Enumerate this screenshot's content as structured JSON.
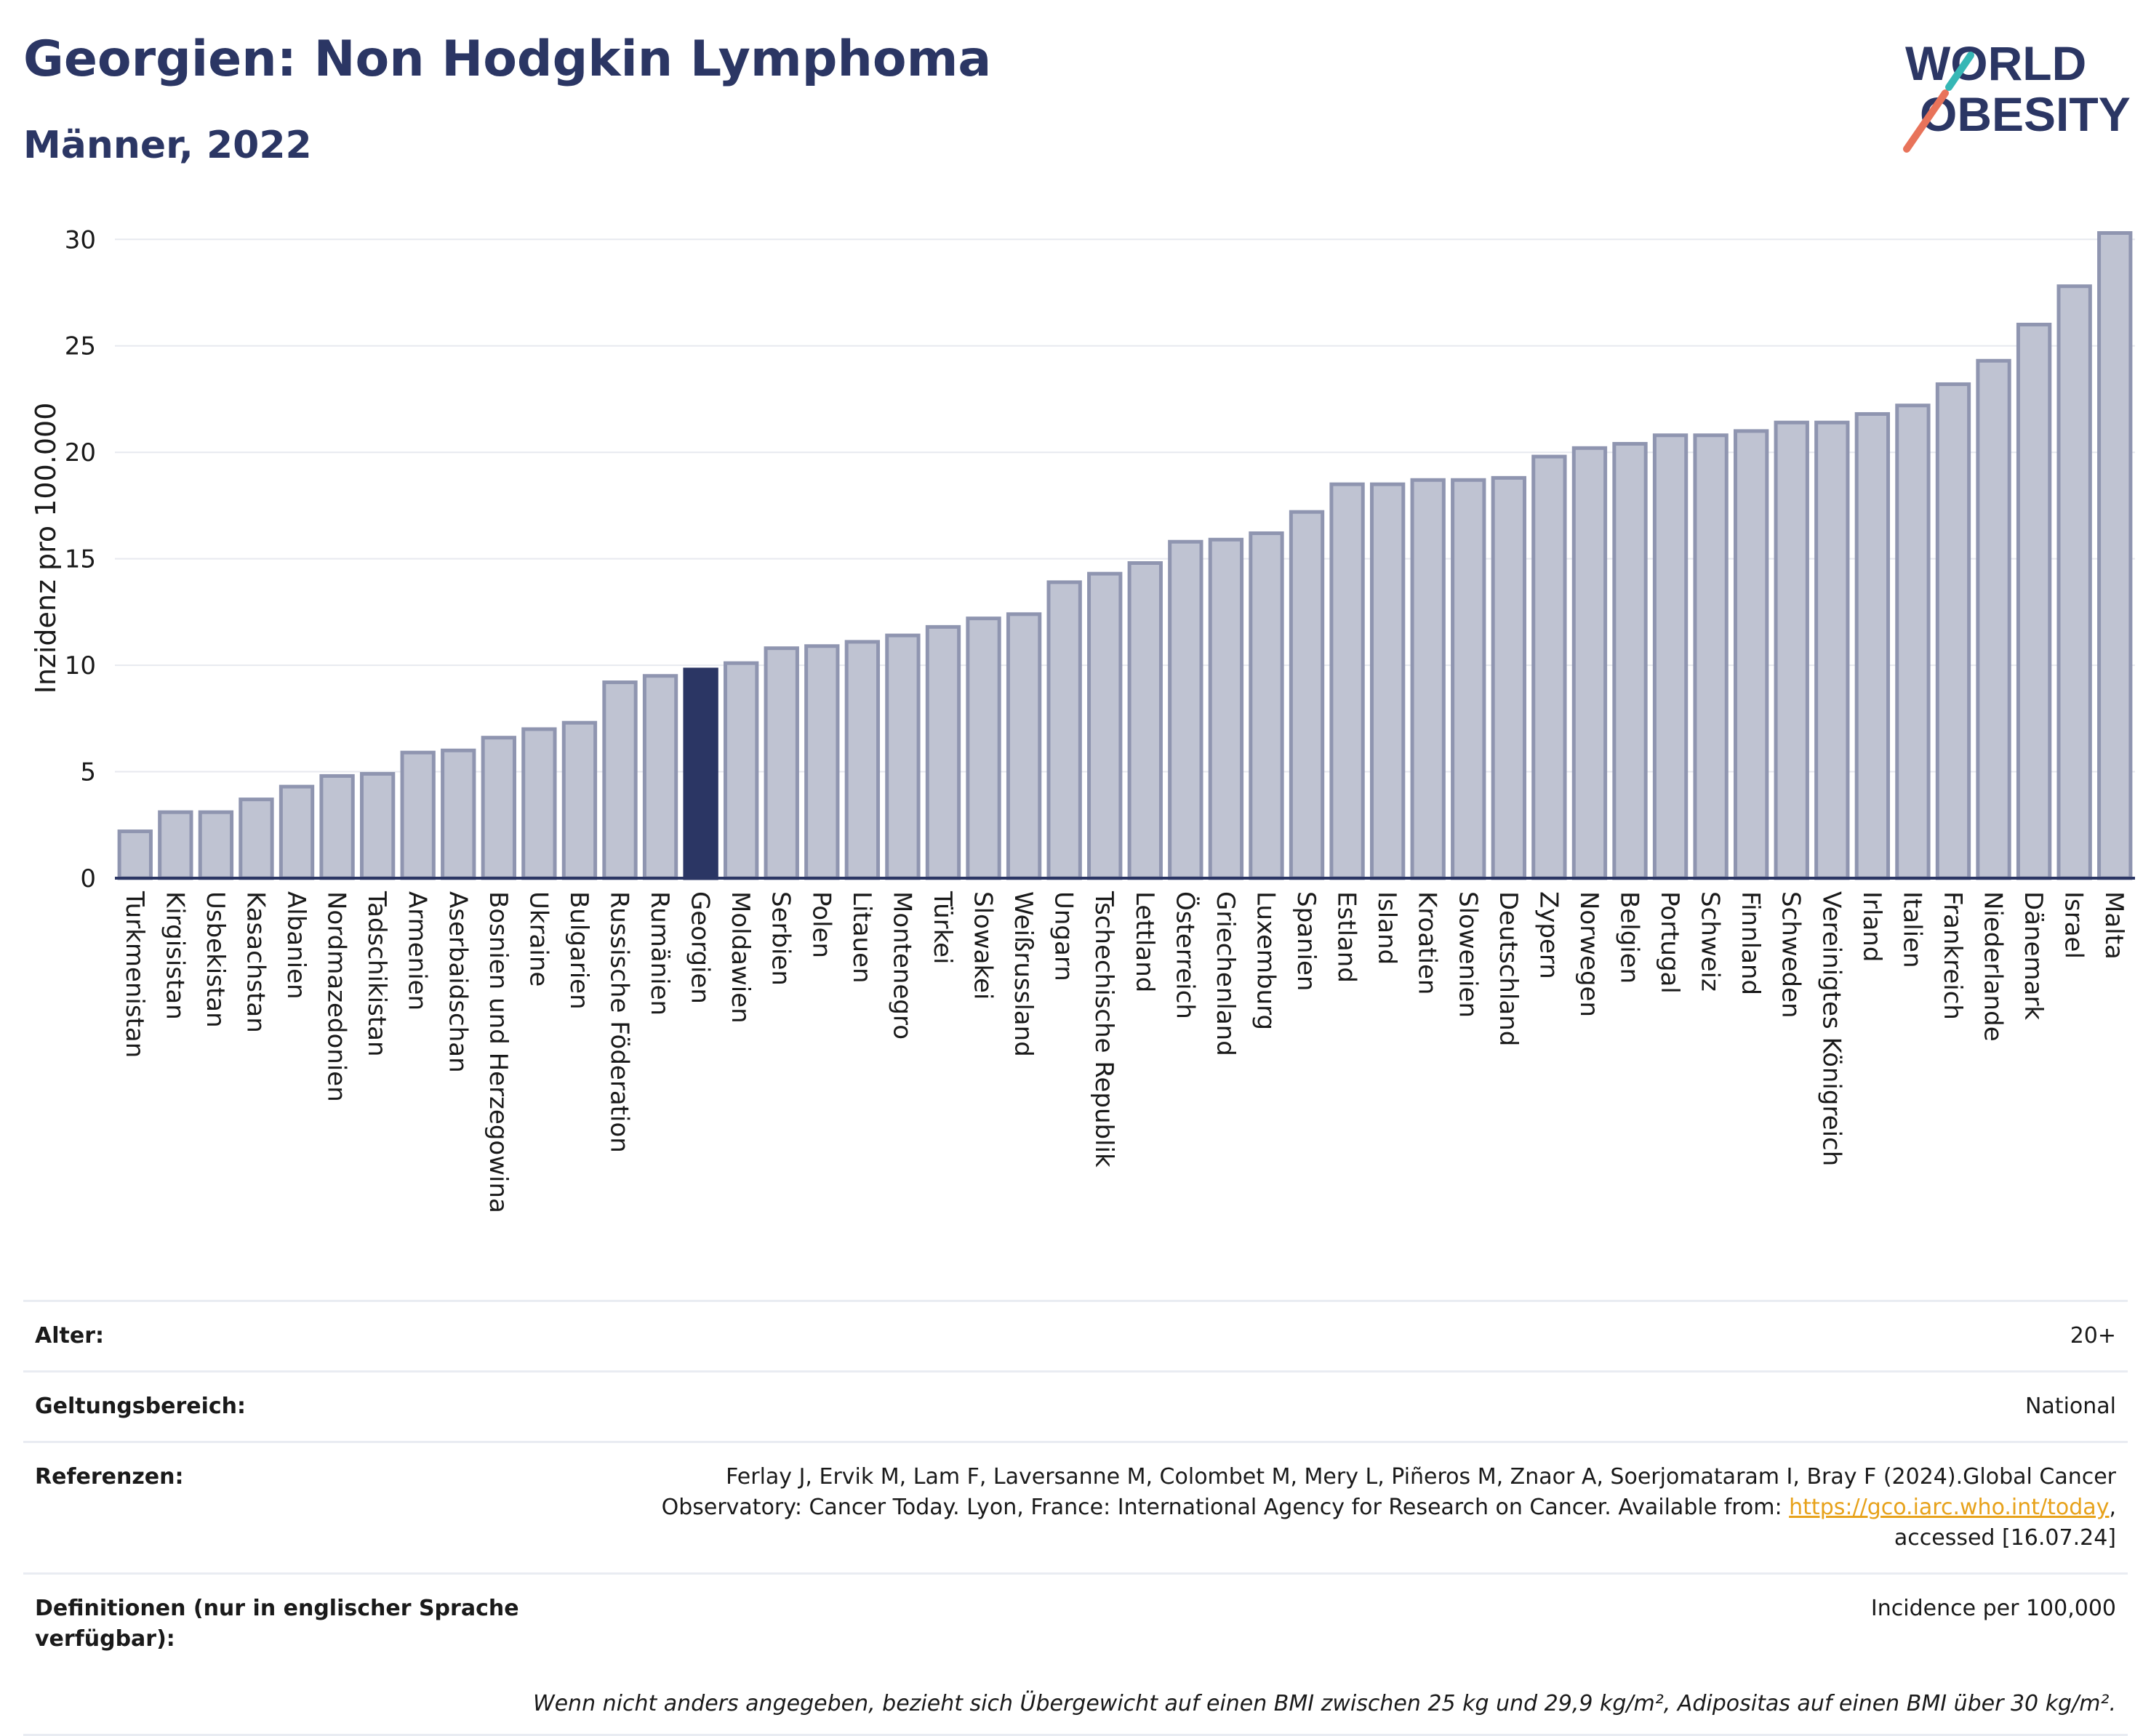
{
  "header": {
    "title": "Georgien: Non Hodgkin Lymphoma",
    "subtitle": "Männer, 2022",
    "logo_line1": "WORLD",
    "logo_line2": "OBESITY"
  },
  "colors": {
    "bar": "#bfc3d2",
    "bar_stroke": "#8f95b0",
    "highlight": "#2b3664",
    "axis": "#2b3664",
    "grid": "#e7e9ef"
  },
  "chart_data": {
    "type": "bar",
    "ylabel": "Inzidenz pro 100.000",
    "ylim": [
      0,
      31
    ],
    "yticks": [
      0,
      5,
      10,
      15,
      20,
      25,
      30
    ],
    "grid": true,
    "highlight": "Georgien",
    "categories": [
      "Turkmenistan",
      "Kirgisistan",
      "Usbekistan",
      "Kasachstan",
      "Albanien",
      "Nordmazedonien",
      "Tadschikistan",
      "Armenien",
      "Aserbaidschan",
      "Bosnien und Herzegowina",
      "Ukraine",
      "Bulgarien",
      "Russische Föderation",
      "Rumänien",
      "Georgien",
      "Moldawien",
      "Serbien",
      "Polen",
      "Litauen",
      "Montenegro",
      "Türkei",
      "Slowakei",
      "Weißrussland",
      "Ungarn",
      "Tschechische Republik",
      "Lettland",
      "Österreich",
      "Griechenland",
      "Luxemburg",
      "Spanien",
      "Estland",
      "Island",
      "Kroatien",
      "Slowenien",
      "Deutschland",
      "Zypern",
      "Norwegen",
      "Belgien",
      "Portugal",
      "Schweiz",
      "Finnland",
      "Schweden",
      "Vereinigtes Königreich",
      "Irland",
      "Italien",
      "Frankreich",
      "Niederlande",
      "Dänemark",
      "Israel",
      "Malta"
    ],
    "values": [
      2.2,
      3.1,
      3.1,
      3.7,
      4.3,
      4.8,
      4.9,
      5.9,
      6.0,
      6.6,
      7.0,
      7.3,
      9.2,
      9.5,
      9.8,
      10.1,
      10.8,
      10.9,
      11.1,
      11.4,
      11.8,
      12.2,
      12.4,
      13.9,
      14.3,
      14.8,
      15.8,
      15.9,
      16.2,
      17.2,
      18.5,
      18.5,
      18.7,
      18.7,
      18.8,
      19.8,
      20.2,
      20.4,
      20.8,
      20.8,
      21.0,
      21.4,
      21.4,
      21.8,
      22.2,
      23.2,
      24.3,
      26.0,
      27.8,
      30.3
    ]
  },
  "meta": {
    "age_label": "Alter:",
    "age_value": "20+",
    "scope_label": "Geltungsbereich:",
    "scope_value": "National",
    "ref_label": "Referenzen:",
    "ref_text1": "Ferlay J, Ervik M, Lam F, Laversanne M, Colombet M, Mery L, Piñeros M, Znaor A, Soerjomataram I, Bray F (2024).Global Cancer",
    "ref_text2": "Observatory: Cancer Today. Lyon, France: International Agency for Research on Cancer. Available from: ",
    "ref_link": "https://gco.iarc.who.int/today",
    "ref_text3": ",",
    "ref_text4": "accessed [16.07.24]",
    "def_label": "Definitionen (nur in englischer Sprache verfügbar):",
    "def_value": "Incidence per 100,000",
    "note": "Wenn nicht anders angegeben, bezieht sich Übergewicht auf einen BMI zwischen 25 kg und 29,9 kg/m², Adipositas auf einen BMI über 30 kg/m²."
  }
}
